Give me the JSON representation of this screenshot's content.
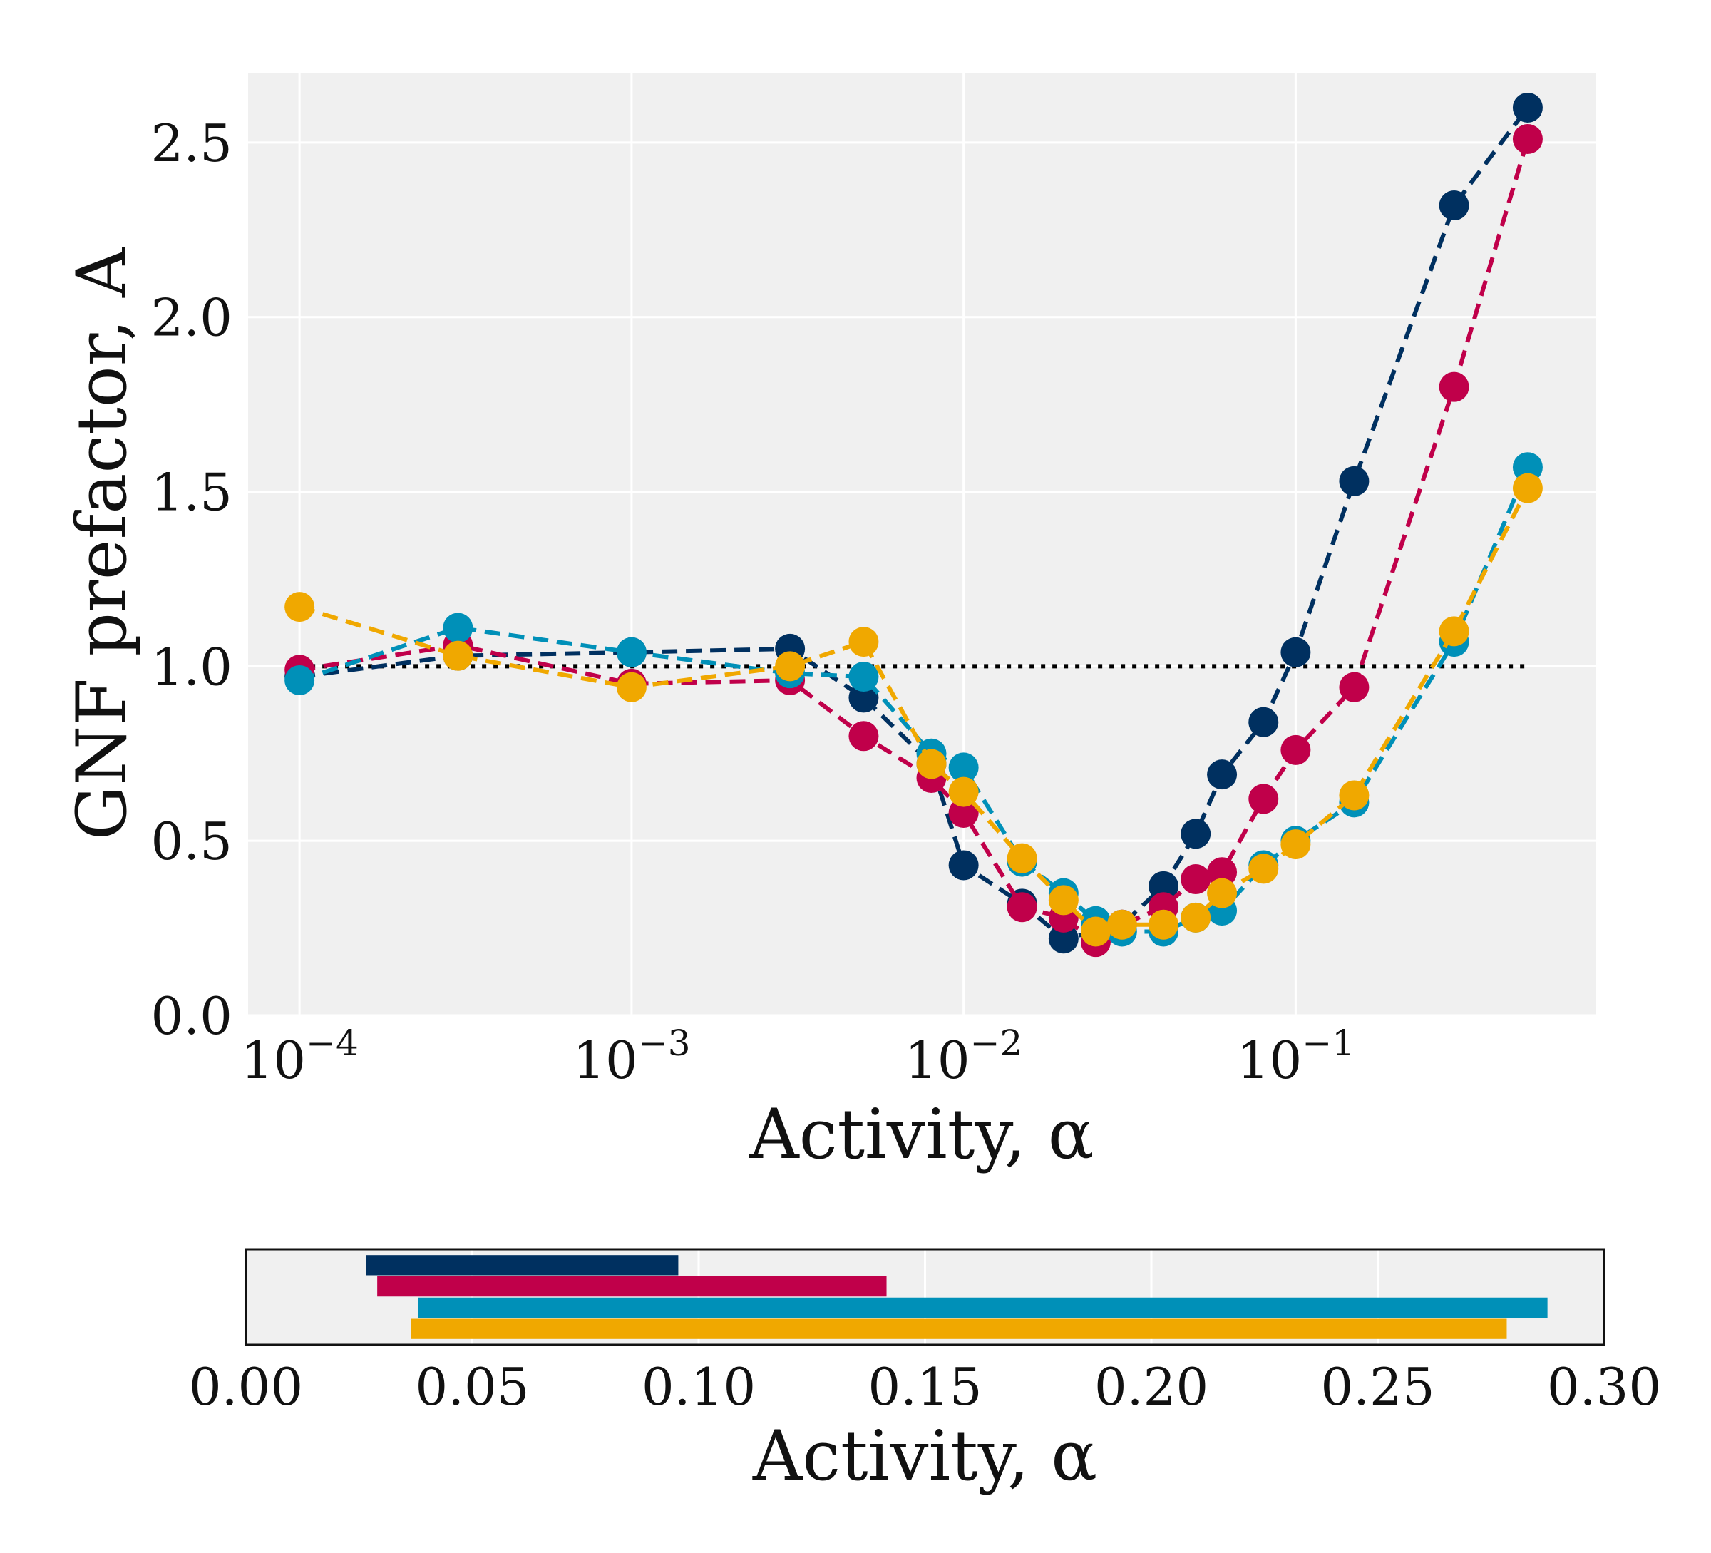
{
  "colors": {
    "panel_bg": "#f0f0f0",
    "grid": "#ffffff",
    "reference_line": "#000000",
    "series": [
      "#003060",
      "#c0004a",
      "#0090b8",
      "#f0a800"
    ]
  },
  "chart_data": [
    {
      "type": "line",
      "line_style": "dashed",
      "marker": "circle",
      "xscale": "log",
      "xlim": [
        7e-05,
        0.8
      ],
      "ylim": [
        0,
        2.7
      ],
      "grid": true,
      "xlabel": "Activity, α",
      "ylabel": "GNF prefactor, A",
      "xticks": [
        {
          "value": 0.0001,
          "base": "10",
          "exp": "−4"
        },
        {
          "value": 0.001,
          "base": "10",
          "exp": "−3"
        },
        {
          "value": 0.01,
          "base": "10",
          "exp": "−2"
        },
        {
          "value": 0.1,
          "base": "10",
          "exp": "−1"
        }
      ],
      "yticks": [
        {
          "value": 0,
          "label": "0.0"
        },
        {
          "value": 0.5,
          "label": "0.5"
        },
        {
          "value": 1,
          "label": "1.0"
        },
        {
          "value": 1.5,
          "label": "1.5"
        },
        {
          "value": 2,
          "label": "2.0"
        },
        {
          "value": 2.5,
          "label": "2.5"
        }
      ],
      "reference_line": {
        "y": 1.0,
        "x_range": [
          0.0001,
          0.5
        ],
        "style": "dotted"
      },
      "series": [
        {
          "x": [
            0.0001,
            0.0003,
            0.001,
            0.003,
            0.005,
            0.008,
            0.01,
            0.015,
            0.02,
            0.025,
            0.03,
            0.04,
            0.05,
            0.06,
            0.08,
            0.1,
            0.15,
            0.3,
            0.5
          ],
          "y": [
            0.97,
            1.03,
            1.04,
            1.05,
            0.91,
            0.72,
            0.43,
            0.32,
            0.22,
            0.24,
            0.26,
            0.37,
            0.52,
            0.69,
            0.84,
            1.04,
            1.53,
            2.32,
            2.6
          ]
        },
        {
          "x": [
            0.0001,
            0.0003,
            0.001,
            0.003,
            0.005,
            0.008,
            0.01,
            0.015,
            0.02,
            0.025,
            0.03,
            0.04,
            0.05,
            0.06,
            0.08,
            0.1,
            0.15,
            0.3,
            0.5
          ],
          "y": [
            0.99,
            1.06,
            0.95,
            0.96,
            0.8,
            0.68,
            0.58,
            0.31,
            0.28,
            0.21,
            0.26,
            0.31,
            0.39,
            0.41,
            0.62,
            0.76,
            0.94,
            1.8,
            2.51
          ]
        },
        {
          "x": [
            0.0001,
            0.0003,
            0.001,
            0.003,
            0.005,
            0.008,
            0.01,
            0.015,
            0.02,
            0.025,
            0.03,
            0.04,
            0.05,
            0.06,
            0.08,
            0.1,
            0.15,
            0.3,
            0.5
          ],
          "y": [
            0.96,
            1.11,
            1.04,
            0.98,
            0.97,
            0.75,
            0.71,
            0.44,
            0.35,
            0.27,
            0.24,
            0.24,
            0.28,
            0.3,
            0.43,
            0.5,
            0.61,
            1.07,
            1.57
          ]
        },
        {
          "x": [
            0.0001,
            0.0003,
            0.001,
            0.003,
            0.005,
            0.008,
            0.01,
            0.015,
            0.02,
            0.025,
            0.03,
            0.04,
            0.05,
            0.06,
            0.08,
            0.1,
            0.15,
            0.3,
            0.5
          ],
          "y": [
            1.17,
            1.03,
            0.94,
            1.0,
            1.07,
            0.72,
            0.64,
            0.45,
            0.33,
            0.24,
            0.26,
            0.26,
            0.28,
            0.35,
            0.42,
            0.49,
            0.63,
            1.1,
            1.51
          ]
        }
      ]
    },
    {
      "type": "bar",
      "orientation": "horizontal",
      "xlim": [
        0,
        0.3
      ],
      "grid": true,
      "xlabel": "Activity, α",
      "xticks": [
        {
          "value": 0,
          "label": "0.00"
        },
        {
          "value": 0.05,
          "label": "0.05"
        },
        {
          "value": 0.1,
          "label": "0.10"
        },
        {
          "value": 0.15,
          "label": "0.15"
        },
        {
          "value": 0.2,
          "label": "0.20"
        },
        {
          "value": 0.25,
          "label": "0.25"
        },
        {
          "value": 0.3,
          "label": "0.30"
        }
      ],
      "ranges": [
        [
          0.0265,
          0.0955
        ],
        [
          0.029,
          0.1415
        ],
        [
          0.038,
          0.2875
        ],
        [
          0.0365,
          0.2785
        ]
      ]
    }
  ]
}
